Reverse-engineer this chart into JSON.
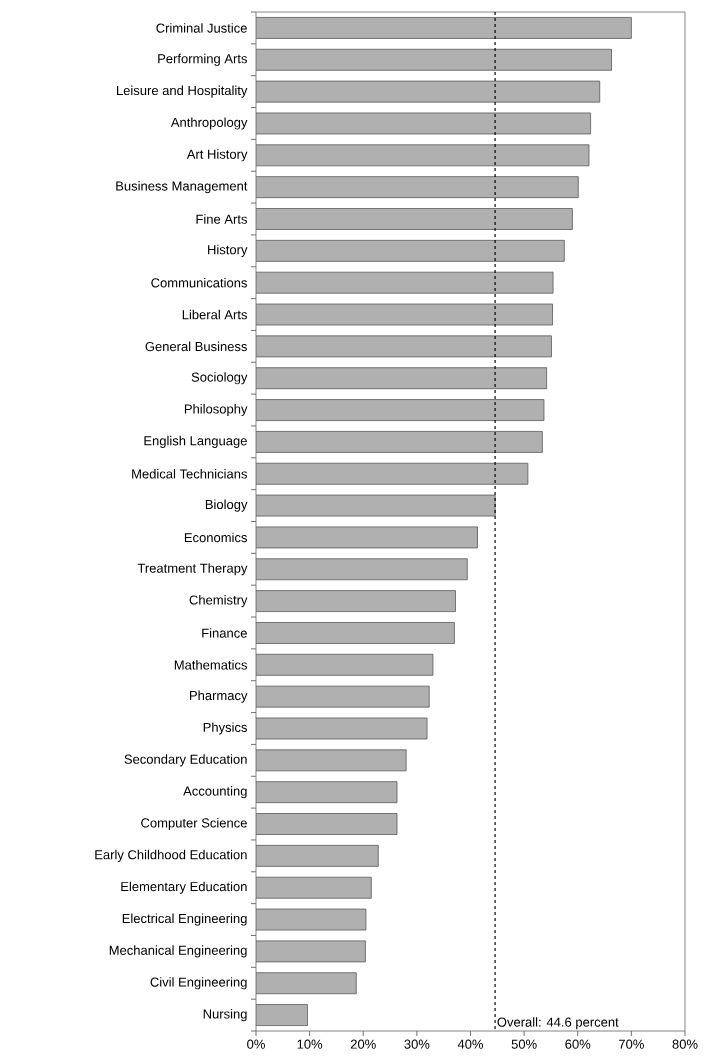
{
  "chart_data": {
    "type": "bar",
    "orientation": "horizontal",
    "categories": [
      "Criminal Justice",
      "Performing Arts",
      "Leisure and Hospitality",
      "Anthropology",
      "Art History",
      "Business Management",
      "Fine Arts",
      "History",
      "Communications",
      "Liberal Arts",
      "General Business",
      "Sociology",
      "Philosophy",
      "English Language",
      "Medical Technicians",
      "Biology",
      "Economics",
      "Treatment Therapy",
      "Chemistry",
      "Finance",
      "Mathematics",
      "Pharmacy",
      "Physics",
      "Secondary Education",
      "Accounting",
      "Computer Science",
      "Early Childhood Education",
      "Elementary Education",
      "Electrical Engineering",
      "Mechanical Engineering",
      "Civil Engineering",
      "Nursing"
    ],
    "values": [
      70.0,
      66.3,
      64.1,
      62.4,
      62.1,
      60.1,
      59.0,
      57.5,
      55.4,
      55.3,
      55.1,
      54.2,
      53.7,
      53.4,
      50.7,
      44.6,
      41.3,
      39.4,
      37.2,
      37.0,
      33.0,
      32.3,
      31.9,
      28.0,
      26.3,
      26.3,
      22.8,
      21.5,
      20.5,
      20.4,
      18.7,
      9.6
    ],
    "color": "#b0b0b0",
    "xlim": [
      0,
      80
    ],
    "xticks": [
      {
        "value": 0,
        "label": "0%"
      },
      {
        "value": 10,
        "label": "10%"
      },
      {
        "value": 20,
        "label": "20%"
      },
      {
        "value": 30,
        "label": "30%"
      },
      {
        "value": 40,
        "label": "40%"
      },
      {
        "value": 50,
        "label": "50%"
      },
      {
        "value": 60,
        "label": "60%"
      },
      {
        "value": 70,
        "label": "70%"
      },
      {
        "value": 80,
        "label": "80%"
      }
    ],
    "ref_lines": [
      {
        "axis": "x",
        "value": 44.6,
        "label": "Overall: 44.6 percent",
        "color": "#000000",
        "line_style": "dashed"
      }
    ]
  }
}
